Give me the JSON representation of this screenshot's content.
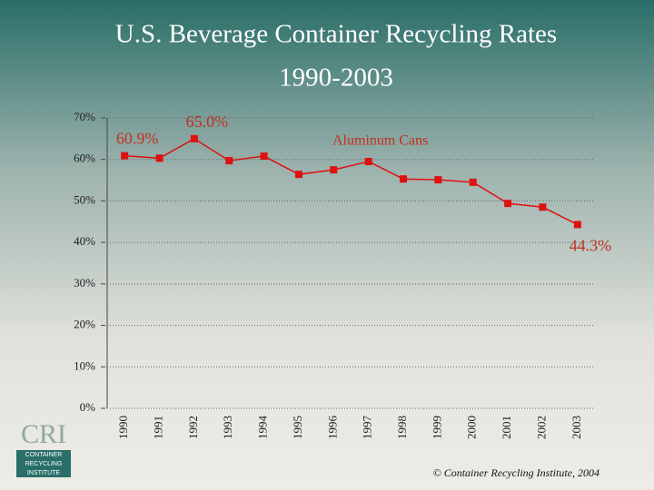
{
  "chart_data": {
    "type": "line",
    "title": "U.S. Beverage Container Recycling Rates",
    "subtitle": "1990-2003",
    "categories": [
      "1990",
      "1991",
      "1992",
      "1993",
      "1994",
      "1995",
      "1996",
      "1997",
      "1998",
      "1999",
      "2000",
      "2001",
      "2002",
      "2003"
    ],
    "series": [
      {
        "name": "Aluminum Cans",
        "color": "#dd1111",
        "values": [
          60.9,
          60.3,
          65.0,
          59.7,
          60.8,
          56.4,
          57.5,
          59.5,
          55.3,
          55.1,
          54.5,
          49.4,
          48.5,
          44.3
        ],
        "value_labels": [
          "60.9%",
          null,
          "65.0%",
          null,
          null,
          null,
          null,
          null,
          null,
          null,
          null,
          null,
          null,
          "44.3%"
        ]
      }
    ],
    "ylim": [
      0,
      70
    ],
    "yticks": [
      {
        "value": 0,
        "label": "0%"
      },
      {
        "value": 10,
        "label": "10%"
      },
      {
        "value": 20,
        "label": "20%"
      },
      {
        "value": 30,
        "label": "30%"
      },
      {
        "value": 40,
        "label": "40%"
      },
      {
        "value": 50,
        "label": "50%"
      },
      {
        "value": 60,
        "label": "60%"
      },
      {
        "value": 70,
        "label": "70%"
      }
    ],
    "grid": true,
    "credit": "© Container Recycling Institute, 2004",
    "logo": {
      "initials": "CRI",
      "lines": [
        "CONTAINER",
        "RECYCLING",
        "INSTITUTE"
      ]
    }
  }
}
